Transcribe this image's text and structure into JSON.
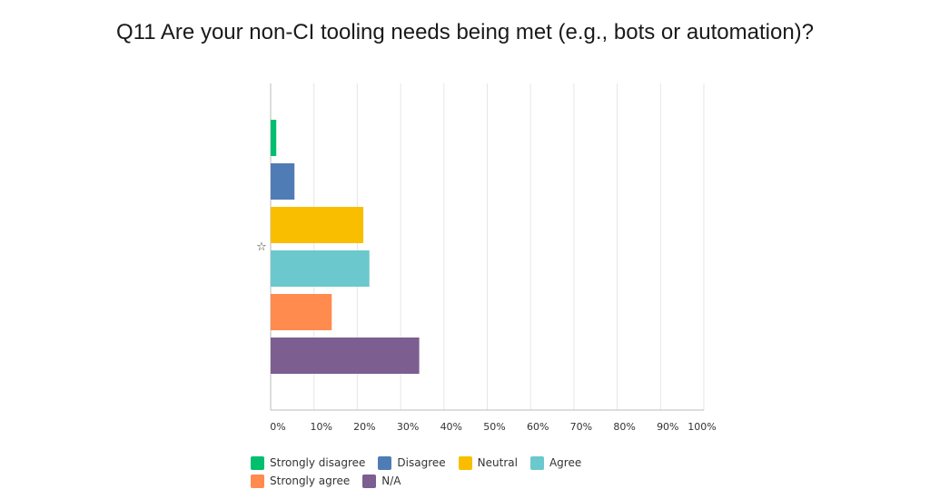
{
  "title": "Q11 Are your non-CI tooling needs being met (e.g., bots or automation)?",
  "chart_data": {
    "type": "bar",
    "orientation": "horizontal",
    "categories": [
      "Strongly disagree",
      "Disagree",
      "Neutral",
      "Agree",
      "Strongly agree",
      "N/A"
    ],
    "values": [
      1.3,
      5.5,
      21.4,
      22.8,
      14.1,
      34.3
    ],
    "colors": [
      "#00bf6f",
      "#507cb6",
      "#f9be00",
      "#6bc8cd",
      "#ff8b4f",
      "#7d5e90"
    ],
    "xlim": [
      0,
      100
    ],
    "xticks": [
      "0%",
      "10%",
      "20%",
      "30%",
      "40%",
      "50%",
      "60%",
      "70%",
      "80%",
      "90%",
      "100%"
    ],
    "xlabel": "",
    "ylabel": "",
    "grid": true,
    "legend_position": "bottom",
    "row_marker": "☆"
  }
}
